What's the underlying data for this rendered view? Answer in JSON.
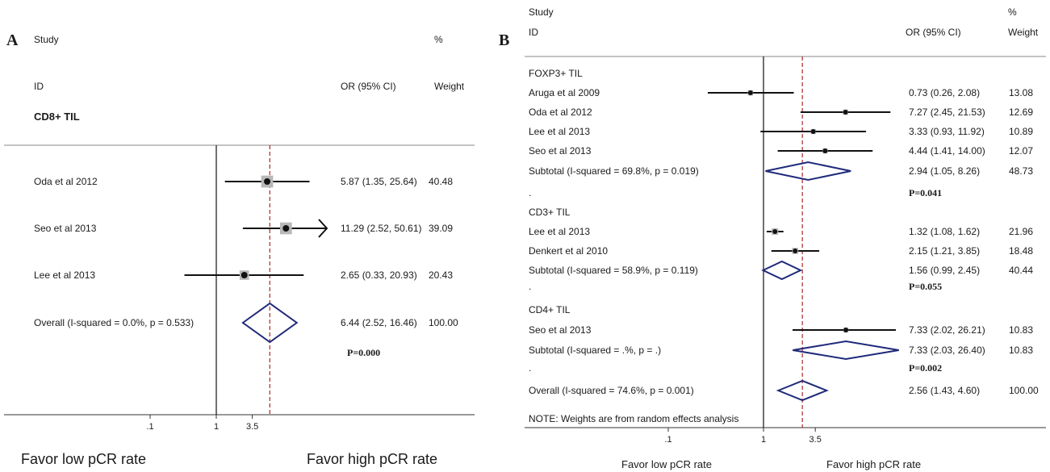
{
  "panel_a": {
    "letter": "A",
    "header_study": "Study",
    "header_id": "ID",
    "header_or": "OR (95% CI)",
    "header_pct": "%",
    "header_weight": "Weight",
    "group_label": "CD8+ TIL",
    "p_value": "P=0.000",
    "favor_low": "Favor low pCR rate",
    "favor_high": "Favor high pCR rate"
  },
  "panel_b": {
    "letter": "B",
    "header_study": "Study",
    "header_id": "ID",
    "header_or": "OR (95% CI)",
    "header_pct": "%",
    "header_weight": "Weight",
    "note": "NOTE: Weights are from random effects analysis",
    "p_foxp3": "P=0.041",
    "p_cd3": "P=0.055",
    "p_cd4": "P=0.002",
    "dot": ".",
    "favor_low": "Favor low pCR rate",
    "favor_high": "Favor high pCR rate"
  },
  "chart_data": [
    {
      "type": "forest",
      "scale": "log",
      "null_value": 1,
      "ref_line": 6.44,
      "ticks": [
        {
          "v": 0.1,
          "label": ".1"
        },
        {
          "v": 1,
          "label": "1"
        },
        {
          "v": 3.5,
          "label": "3.5"
        }
      ],
      "groups": [
        {
          "name": "CD8+ TIL",
          "studies": [
            {
              "label": "Oda et al 2012",
              "or": 5.87,
              "lo": 1.35,
              "hi": 25.64,
              "ci_text": "5.87 (1.35, 25.64)",
              "weight_text": "40.48",
              "weight": 40.48
            },
            {
              "label": "Seo et al 2013",
              "or": 11.29,
              "lo": 2.52,
              "hi": 50.61,
              "ci_text": "11.29 (2.52, 50.61)",
              "weight_text": "39.09",
              "weight": 39.09,
              "arrow": true
            },
            {
              "label": "Lee et al 2013",
              "or": 2.65,
              "lo": 0.33,
              "hi": 20.93,
              "ci_text": "2.65 (0.33, 20.93)",
              "weight_text": "20.43",
              "weight": 20.43
            }
          ]
        }
      ],
      "overall": {
        "label": "Overall  (I-squared = 0.0%, p = 0.533)",
        "or": 6.44,
        "lo": 2.52,
        "hi": 16.46,
        "ci_text": "6.44 (2.52, 16.46)",
        "weight_text": "100.00"
      }
    },
    {
      "type": "forest",
      "scale": "log",
      "null_value": 1,
      "ref_line": 2.56,
      "ticks": [
        {
          "v": 0.1,
          "label": ".1"
        },
        {
          "v": 1,
          "label": "1"
        },
        {
          "v": 3.5,
          "label": "3.5"
        }
      ],
      "groups": [
        {
          "name": "FOXP3+ TIL",
          "studies": [
            {
              "label": "Aruga et al 2009",
              "or": 0.73,
              "lo": 0.26,
              "hi": 2.08,
              "ci_text": "0.73 (0.26, 2.08)",
              "weight_text": "13.08",
              "weight": 13.08
            },
            {
              "label": "Oda et al 2012",
              "or": 7.27,
              "lo": 2.45,
              "hi": 21.53,
              "ci_text": "7.27 (2.45, 21.53)",
              "weight_text": "12.69",
              "weight": 12.69
            },
            {
              "label": "Lee et al 2013",
              "or": 3.33,
              "lo": 0.93,
              "hi": 11.92,
              "ci_text": "3.33 (0.93, 11.92)",
              "weight_text": "10.89",
              "weight": 10.89
            },
            {
              "label": "Seo et al 2013",
              "or": 4.44,
              "lo": 1.41,
              "hi": 14.0,
              "ci_text": "4.44 (1.41, 14.00)",
              "weight_text": "12.07",
              "weight": 12.07
            }
          ],
          "subtotal": {
            "label": "Subtotal  (I-squared = 69.8%, p = 0.019)",
            "or": 2.94,
            "lo": 1.05,
            "hi": 8.26,
            "ci_text": "2.94 (1.05, 8.26)",
            "weight_text": "48.73"
          }
        },
        {
          "name": "CD3+ TIL",
          "studies": [
            {
              "label": "Lee et al 2013",
              "or": 1.32,
              "lo": 1.08,
              "hi": 1.62,
              "ci_text": "1.32 (1.08, 1.62)",
              "weight_text": "21.96",
              "weight": 21.96
            },
            {
              "label": "Denkert et al 2010",
              "or": 2.15,
              "lo": 1.21,
              "hi": 3.85,
              "ci_text": "2.15 (1.21, 3.85)",
              "weight_text": "18.48",
              "weight": 18.48
            }
          ],
          "subtotal": {
            "label": "Subtotal  (I-squared = 58.9%, p = 0.119)",
            "or": 1.56,
            "lo": 0.99,
            "hi": 2.45,
            "ci_text": "1.56 (0.99, 2.45)",
            "weight_text": "40.44"
          }
        },
        {
          "name": "CD4+ TIL",
          "studies": [
            {
              "label": "Seo et al 2013",
              "or": 7.33,
              "lo": 2.02,
              "hi": 26.21,
              "ci_text": "7.33 (2.02, 26.21)",
              "weight_text": "10.83",
              "weight": 10.83
            }
          ],
          "subtotal": {
            "label": "Subtotal  (I-squared = .%, p = .)",
            "or": 7.33,
            "lo": 2.03,
            "hi": 26.4,
            "ci_text": "7.33 (2.03, 26.40)",
            "weight_text": "10.83"
          }
        }
      ],
      "overall": {
        "label": "Overall  (I-squared = 74.6%, p = 0.001)",
        "or": 2.56,
        "lo": 1.43,
        "hi": 4.6,
        "ci_text": "2.56 (1.43, 4.60)",
        "weight_text": "100.00"
      }
    }
  ]
}
